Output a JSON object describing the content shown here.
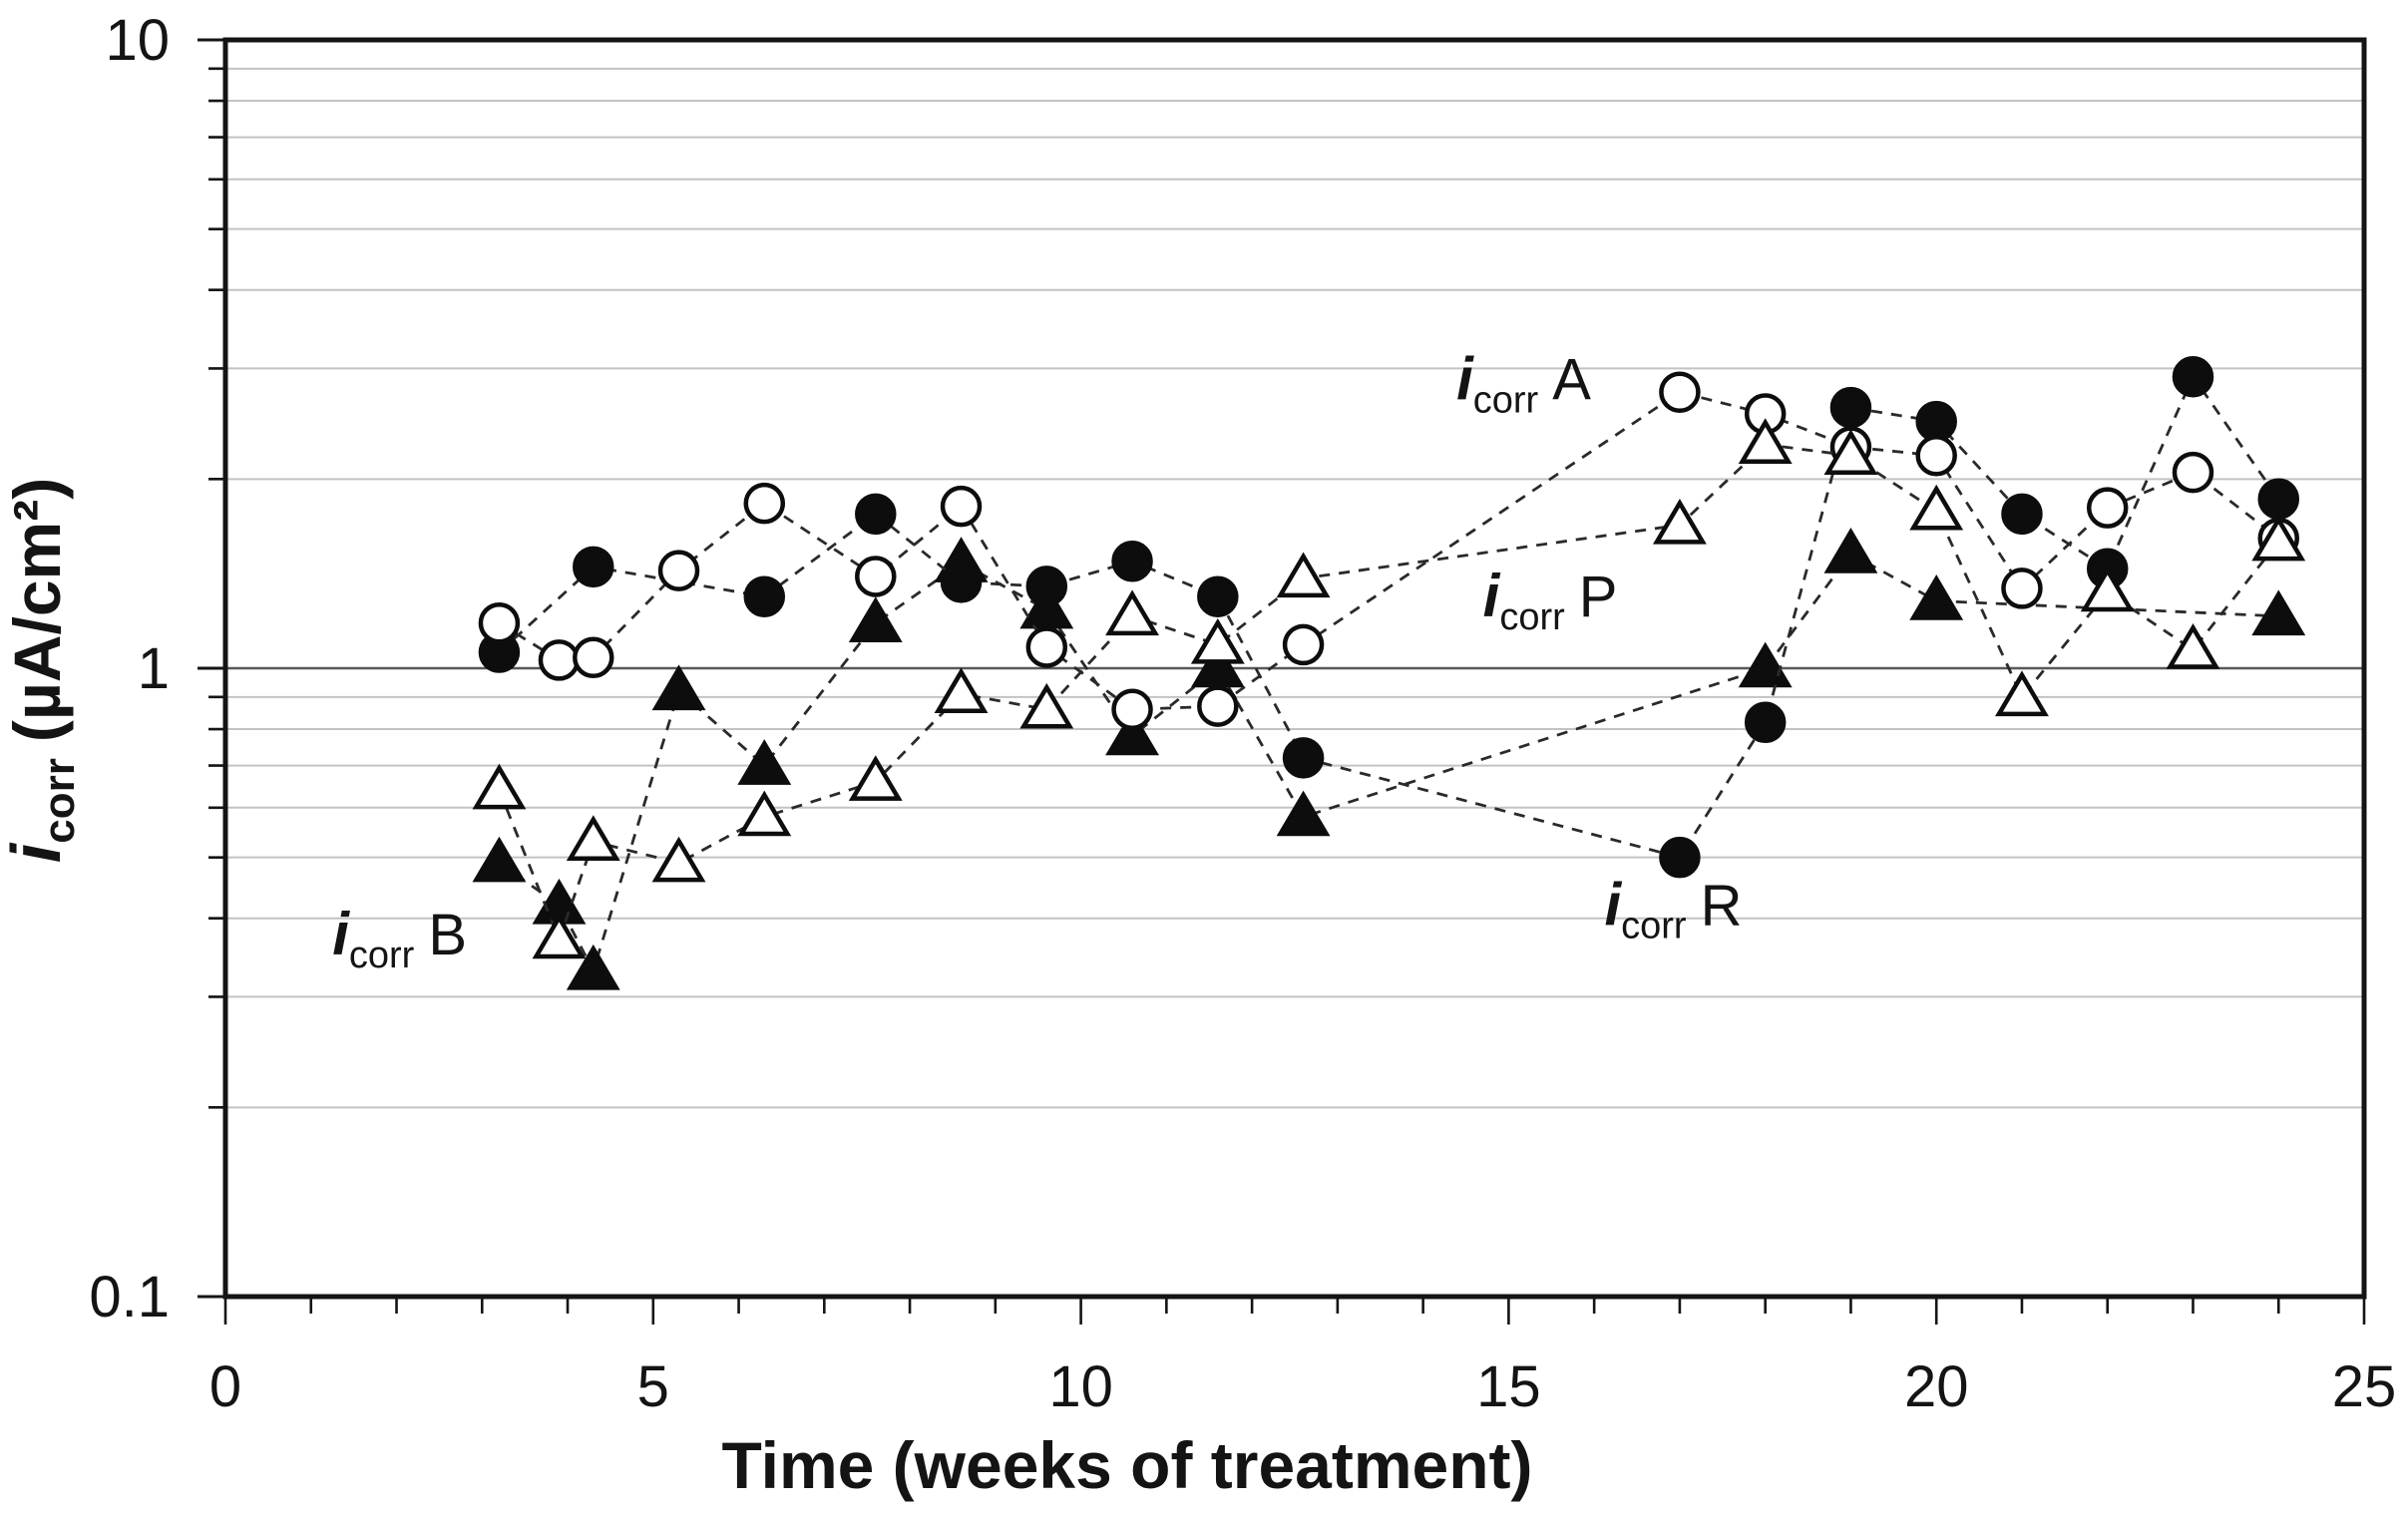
{
  "chart_data": {
    "type": "line",
    "title": "",
    "xlabel": "Time (weeks of treatment)",
    "ylabel": {
      "i": "i",
      "sub": "corr",
      "rest": "(µA/cm²)"
    },
    "x_axis": {
      "min": 0,
      "max": 25,
      "major_ticks": [
        0,
        5,
        10,
        15,
        20,
        25
      ],
      "tick_labels": [
        "0",
        "5",
        "10",
        "15",
        "20",
        "25"
      ],
      "minor_tick_step": 1
    },
    "y_axis": {
      "scale": "log",
      "min": 0.1,
      "max": 10,
      "major_ticks": [
        0.1,
        1,
        10
      ],
      "tick_labels": [
        "0.1",
        "1",
        "10"
      ],
      "minor_gridlines": [
        0.2,
        0.3,
        0.4,
        0.5,
        0.6,
        0.7,
        0.8,
        0.9,
        2,
        3,
        4,
        5,
        6,
        7,
        8,
        9
      ]
    },
    "grid": true,
    "legend": "inline-annotations",
    "series": [
      {
        "name": "i_corr B",
        "label": {
          "i": "i",
          "sub": "corr",
          "suffix": "B"
        },
        "marker": "triangle-filled",
        "annotation_anchor": {
          "week": 1.25,
          "value": 0.35
        },
        "points": [
          [
            3.2,
            0.49
          ],
          [
            3.9,
            0.42
          ],
          [
            4.3,
            0.33
          ],
          [
            5.3,
            0.92
          ],
          [
            6.3,
            0.7
          ],
          [
            7.6,
            1.18
          ],
          [
            8.6,
            1.47
          ],
          [
            9.6,
            1.24
          ],
          [
            10.6,
            0.78
          ],
          [
            11.6,
            1.0
          ],
          [
            12.6,
            0.58
          ],
          [
            18,
            1.0
          ],
          [
            19,
            1.52
          ],
          [
            20,
            1.28
          ],
          [
            24,
            1.21
          ]
        ]
      },
      {
        "name": "i_corr R",
        "label": {
          "i": "i",
          "sub": "corr",
          "suffix": "R"
        },
        "marker": "circle-filled",
        "annotation_anchor": {
          "week": 16.12,
          "value": 0.39
        },
        "points": [
          [
            3.2,
            1.06
          ],
          [
            4.3,
            1.45
          ],
          [
            6.3,
            1.3
          ],
          [
            7.6,
            1.76
          ],
          [
            8.6,
            1.37
          ],
          [
            9.6,
            1.35
          ],
          [
            10.6,
            1.48
          ],
          [
            11.6,
            1.3
          ],
          [
            12.6,
            0.72
          ],
          [
            17,
            0.5
          ],
          [
            18,
            0.82
          ],
          [
            19,
            2.6
          ],
          [
            20,
            2.47
          ],
          [
            21,
            1.76
          ],
          [
            22,
            1.44
          ],
          [
            23,
            2.91
          ],
          [
            24,
            1.86
          ]
        ]
      },
      {
        "name": "i_corr A",
        "label": {
          "i": "i",
          "sub": "corr",
          "suffix": "A"
        },
        "marker": "circle-open",
        "annotation_anchor": {
          "week": 14.39,
          "value": 2.68
        },
        "points": [
          [
            3.2,
            1.18
          ],
          [
            3.9,
            1.03
          ],
          [
            4.3,
            1.04
          ],
          [
            5.3,
            1.43
          ],
          [
            6.3,
            1.83
          ],
          [
            7.6,
            1.4
          ],
          [
            8.6,
            1.81
          ],
          [
            9.6,
            1.08
          ],
          [
            10.6,
            0.86
          ],
          [
            11.6,
            0.87
          ],
          [
            12.6,
            1.09
          ],
          [
            17,
            2.75
          ],
          [
            18,
            2.54
          ],
          [
            19,
            2.25
          ],
          [
            20,
            2.18
          ],
          [
            21,
            1.34
          ],
          [
            22,
            1.8
          ],
          [
            23,
            2.05
          ],
          [
            24,
            1.61
          ]
        ]
      },
      {
        "name": "i_corr P",
        "label": {
          "i": "i",
          "sub": "corr",
          "suffix": "P"
        },
        "marker": "triangle-open",
        "annotation_anchor": {
          "week": 14.7,
          "value": 1.21
        },
        "points": [
          [
            3.2,
            0.64
          ],
          [
            3.9,
            0.37
          ],
          [
            4.3,
            0.53
          ],
          [
            5.3,
            0.49
          ],
          [
            6.3,
            0.58
          ],
          [
            7.6,
            0.66
          ],
          [
            8.6,
            0.91
          ],
          [
            9.6,
            0.86
          ],
          [
            10.6,
            1.21
          ],
          [
            11.6,
            1.09
          ],
          [
            12.6,
            1.39
          ],
          [
            17,
            1.69
          ],
          [
            18,
            2.27
          ],
          [
            19,
            2.18
          ],
          [
            20,
            1.78
          ],
          [
            21,
            0.9
          ],
          [
            22,
            1.32
          ],
          [
            23,
            1.07
          ],
          [
            24,
            1.59
          ]
        ]
      }
    ],
    "colors": {
      "ink": "#141414",
      "marker_fill": "#0d0d0d",
      "open_fill": "#ffffff",
      "grid_minor": "#c3c3c3",
      "grid_unity": "#595959",
      "background": "#ffffff"
    }
  }
}
